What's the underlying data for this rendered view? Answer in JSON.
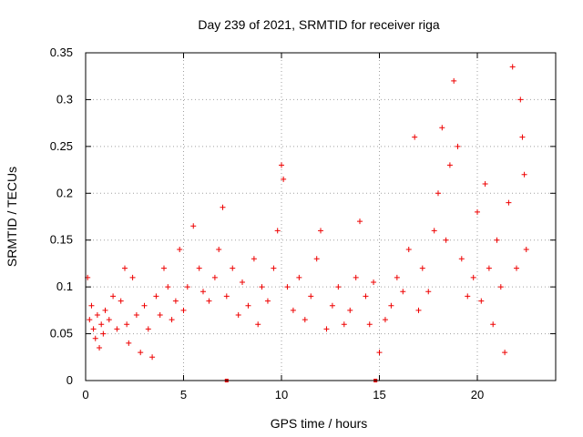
{
  "chart_data": {
    "type": "scatter",
    "title": "Day 239 of 2021, SRMTID for receiver riga",
    "xlabel": "GPS time / hours",
    "ylabel": "SRMTID / TECUs",
    "xlim": [
      0,
      24
    ],
    "ylim": [
      0,
      0.35
    ],
    "xticks": [
      0,
      5,
      10,
      15,
      20
    ],
    "xtick_labels": [
      "0",
      "5",
      "10",
      "15",
      "20"
    ],
    "yticks": [
      0,
      0.05,
      0.1,
      0.15,
      0.2,
      0.25,
      0.3,
      0.35
    ],
    "ytick_labels": [
      "0",
      "0.05",
      "0.1",
      "0.15",
      "0.2",
      "0.25",
      "0.3",
      "0.35"
    ],
    "grid": true,
    "marker": "+",
    "marker_color": "#ee0000",
    "series": [
      {
        "name": "SRMTID",
        "color": "#ee0000",
        "approx_points": [
          [
            0.1,
            0.11
          ],
          [
            0.2,
            0.065
          ],
          [
            0.3,
            0.08
          ],
          [
            0.4,
            0.055
          ],
          [
            0.5,
            0.045
          ],
          [
            0.6,
            0.07
          ],
          [
            0.7,
            0.035
          ],
          [
            0.8,
            0.06
          ],
          [
            0.9,
            0.05
          ],
          [
            1.0,
            0.075
          ],
          [
            1.2,
            0.065
          ],
          [
            1.4,
            0.09
          ],
          [
            1.6,
            0.055
          ],
          [
            1.8,
            0.085
          ],
          [
            2.0,
            0.12
          ],
          [
            2.1,
            0.06
          ],
          [
            2.2,
            0.04
          ],
          [
            2.4,
            0.11
          ],
          [
            2.6,
            0.07
          ],
          [
            2.8,
            0.03
          ],
          [
            3.0,
            0.08
          ],
          [
            3.2,
            0.055
          ],
          [
            3.4,
            0.025
          ],
          [
            3.6,
            0.09
          ],
          [
            3.8,
            0.07
          ],
          [
            4.0,
            0.12
          ],
          [
            4.2,
            0.1
          ],
          [
            4.4,
            0.065
          ],
          [
            4.6,
            0.085
          ],
          [
            4.8,
            0.14
          ],
          [
            5.0,
            0.075
          ],
          [
            5.2,
            0.1
          ],
          [
            5.5,
            0.165
          ],
          [
            5.8,
            0.12
          ],
          [
            6.0,
            0.095
          ],
          [
            6.3,
            0.085
          ],
          [
            6.6,
            0.11
          ],
          [
            6.8,
            0.14
          ],
          [
            7.0,
            0.185
          ],
          [
            7.2,
            0.09
          ],
          [
            7.5,
            0.12
          ],
          [
            7.8,
            0.07
          ],
          [
            8.0,
            0.105
          ],
          [
            8.3,
            0.08
          ],
          [
            8.6,
            0.13
          ],
          [
            8.8,
            0.06
          ],
          [
            9.0,
            0.1
          ],
          [
            9.3,
            0.085
          ],
          [
            9.6,
            0.12
          ],
          [
            9.8,
            0.16
          ],
          [
            10.0,
            0.23
          ],
          [
            10.1,
            0.215
          ],
          [
            10.3,
            0.1
          ],
          [
            10.6,
            0.075
          ],
          [
            10.9,
            0.11
          ],
          [
            11.2,
            0.065
          ],
          [
            11.5,
            0.09
          ],
          [
            11.8,
            0.13
          ],
          [
            12.0,
            0.16
          ],
          [
            12.3,
            0.055
          ],
          [
            12.6,
            0.08
          ],
          [
            12.9,
            0.1
          ],
          [
            13.2,
            0.06
          ],
          [
            13.5,
            0.075
          ],
          [
            13.8,
            0.11
          ],
          [
            14.0,
            0.17
          ],
          [
            14.3,
            0.09
          ],
          [
            14.5,
            0.06
          ],
          [
            14.7,
            0.105
          ],
          [
            15.0,
            0.03
          ],
          [
            15.3,
            0.065
          ],
          [
            15.6,
            0.08
          ],
          [
            15.9,
            0.11
          ],
          [
            16.2,
            0.095
          ],
          [
            16.5,
            0.14
          ],
          [
            16.8,
            0.26
          ],
          [
            17.0,
            0.075
          ],
          [
            17.2,
            0.12
          ],
          [
            17.5,
            0.095
          ],
          [
            17.8,
            0.16
          ],
          [
            18.0,
            0.2
          ],
          [
            18.2,
            0.27
          ],
          [
            18.4,
            0.15
          ],
          [
            18.6,
            0.23
          ],
          [
            18.8,
            0.32
          ],
          [
            19.0,
            0.25
          ],
          [
            19.2,
            0.13
          ],
          [
            19.5,
            0.09
          ],
          [
            19.8,
            0.11
          ],
          [
            20.0,
            0.18
          ],
          [
            20.2,
            0.085
          ],
          [
            20.4,
            0.21
          ],
          [
            20.6,
            0.12
          ],
          [
            20.8,
            0.06
          ],
          [
            21.0,
            0.15
          ],
          [
            21.2,
            0.1
          ],
          [
            21.4,
            0.03
          ],
          [
            21.6,
            0.19
          ],
          [
            21.8,
            0.335
          ],
          [
            22.0,
            0.12
          ],
          [
            22.2,
            0.3
          ],
          [
            22.3,
            0.26
          ],
          [
            22.4,
            0.22
          ],
          [
            22.5,
            0.14
          ]
        ]
      }
    ],
    "gap_markers_x": [
      7.2,
      14.8
    ]
  }
}
